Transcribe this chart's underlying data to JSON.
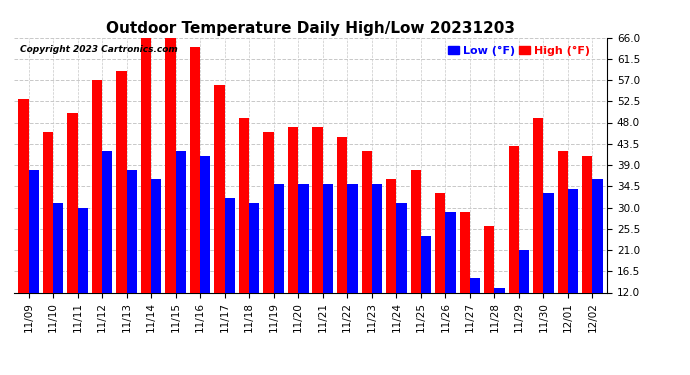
{
  "title": "Outdoor Temperature Daily High/Low 20231203",
  "copyright": "Copyright 2023 Cartronics.com",
  "legend_low": "Low",
  "legend_high": "High",
  "legend_unit": "(°F)",
  "dates": [
    "11/09",
    "11/10",
    "11/11",
    "11/12",
    "11/13",
    "11/14",
    "11/15",
    "11/16",
    "11/17",
    "11/18",
    "11/19",
    "11/20",
    "11/21",
    "11/22",
    "11/23",
    "11/24",
    "11/25",
    "11/26",
    "11/27",
    "11/28",
    "11/29",
    "11/30",
    "12/01",
    "12/02"
  ],
  "high": [
    53,
    46,
    50,
    57,
    59,
    66,
    67,
    64,
    56,
    49,
    46,
    47,
    47,
    45,
    42,
    36,
    38,
    33,
    29,
    26,
    43,
    49,
    42,
    41
  ],
  "low": [
    38,
    31,
    30,
    42,
    38,
    36,
    42,
    41,
    32,
    31,
    35,
    35,
    35,
    35,
    35,
    31,
    24,
    29,
    15,
    13,
    21,
    33,
    34,
    36
  ],
  "high_color": "#ff0000",
  "low_color": "#0000ff",
  "bg_color": "#ffffff",
  "grid_color": "#c8c8c8",
  "yticks": [
    12.0,
    16.5,
    21.0,
    25.5,
    30.0,
    34.5,
    39.0,
    43.5,
    48.0,
    52.5,
    57.0,
    61.5,
    66.0
  ],
  "ymin": 12.0,
  "ymax": 66.0,
  "bar_width": 0.42,
  "title_fontsize": 11,
  "tick_fontsize": 7.5,
  "legend_fontsize": 8,
  "copyright_fontsize": 6.5
}
